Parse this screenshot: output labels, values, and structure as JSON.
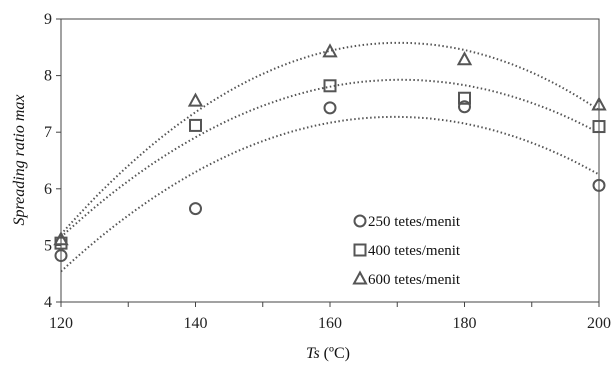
{
  "chart_data": {
    "type": "scatter",
    "title": "",
    "xlabel_main": "Ts",
    "xlabel_unit": " (ºC)",
    "ylabel": "Spreading ratio max",
    "xlim": [
      120,
      200
    ],
    "ylim": [
      4,
      9
    ],
    "x_ticks": [
      120,
      140,
      160,
      180,
      200
    ],
    "y_ticks": [
      4,
      5,
      6,
      7,
      8,
      9
    ],
    "grid": false,
    "legend_position": "right-middle",
    "trendline": "polynomial-order-2-dotted",
    "x": [
      120,
      140,
      160,
      180,
      200
    ],
    "series": [
      {
        "name": "250 tetes/menit",
        "marker": "circle",
        "values": [
          4.82,
          5.65,
          7.43,
          7.45,
          6.06
        ]
      },
      {
        "name": "400 tetes/menit",
        "marker": "square",
        "values": [
          5.04,
          7.12,
          7.82,
          7.6,
          7.1
        ]
      },
      {
        "name": "600 tetes/menit",
        "marker": "triangle",
        "values": [
          5.1,
          7.55,
          8.42,
          8.28,
          7.48
        ]
      }
    ]
  },
  "colors": {
    "marker_stroke": "#555555",
    "trendline": "#555555",
    "axis": "#444444"
  }
}
